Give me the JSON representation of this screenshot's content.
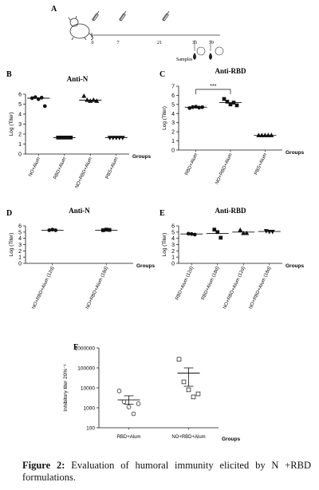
{
  "figure": {
    "caption_label": "Figure 2:",
    "caption_text": "Evaluation of humoral immunity elicited by N +RBD formulations."
  },
  "timeline": {
    "panel_letter": "A",
    "ticks": [
      "0",
      "7",
      "21",
      "33",
      "39"
    ],
    "samples_label": "Samples"
  },
  "chart_data": [
    {
      "id": "B",
      "type": "scatter",
      "title": "Anti-N",
      "xlabel": "Groups",
      "ylabel": "Log (Titer)",
      "ylim": [
        0,
        6
      ],
      "yticks": [
        0,
        1,
        2,
        3,
        4,
        5,
        6
      ],
      "categories": [
        "NO+Alum",
        "RBD+Alum",
        "NO+RBD+Alum",
        "PBS+Alum"
      ],
      "markers": [
        "circle",
        "square",
        "triangle",
        "down-triangle"
      ],
      "means": [
        5.6,
        1.65,
        5.4,
        1.65
      ],
      "points": [
        [
          5.6,
          5.7,
          5.5,
          5.65,
          4.8
        ],
        [
          1.65,
          1.65,
          1.65,
          1.65,
          1.65
        ],
        [
          5.8,
          5.4,
          5.3,
          5.4,
          5.3
        ],
        [
          1.65,
          1.65,
          1.65,
          1.65,
          1.65
        ]
      ]
    },
    {
      "id": "C",
      "type": "scatter",
      "title": "Anti-RBD",
      "xlabel": "Groups",
      "ylabel": "Log (Titer)",
      "ylim": [
        0,
        7
      ],
      "yticks": [
        0,
        1,
        2,
        3,
        4,
        5,
        6,
        7
      ],
      "categories": [
        "RBD+Alum",
        "NO+RBD+Alum",
        "PBS+Alum"
      ],
      "markers": [
        "circle",
        "square",
        "triangle"
      ],
      "means": [
        4.7,
        5.2,
        1.6
      ],
      "points": [
        [
          4.6,
          4.7,
          4.75,
          4.65,
          4.7
        ],
        [
          5.6,
          5.3,
          5.0,
          5.2,
          4.9
        ],
        [
          1.6,
          1.6,
          1.6,
          1.6,
          1.6
        ]
      ],
      "significance": {
        "from": 0,
        "to": 1,
        "label": "***"
      }
    },
    {
      "id": "D",
      "type": "scatter",
      "title": "Anti-N",
      "xlabel": "Groups",
      "ylabel": "Log (Titer)",
      "ylim": [
        0,
        6
      ],
      "yticks": [
        0,
        1,
        2,
        3,
        4,
        5,
        6
      ],
      "categories": [
        "NO+RBD+Alum (12d)",
        "NO+RBD+Alum (18d)"
      ],
      "markers": [
        "circle",
        "square"
      ],
      "means": [
        5.3,
        5.3
      ],
      "points": [
        [
          5.3,
          5.4,
          5.3
        ],
        [
          5.3,
          5.4,
          5.35
        ]
      ]
    },
    {
      "id": "E",
      "type": "scatter",
      "title": "Anti-RBD",
      "xlabel": "Groups",
      "ylabel": "Log (Titer)",
      "ylim": [
        0,
        6
      ],
      "yticks": [
        0,
        1,
        2,
        3,
        4,
        5,
        6
      ],
      "categories": [
        "RBD+Alum (12d)",
        "RBD+Alum (18d)",
        "NO+RBD+Alum (12d)",
        "NO+RBD+Alum (18d)"
      ],
      "markers": [
        "circle",
        "square",
        "triangle",
        "down-triangle"
      ],
      "means": [
        4.7,
        4.8,
        5.0,
        5.1
      ],
      "points": [
        [
          4.75,
          4.7,
          4.6
        ],
        [
          5.4,
          5.0,
          4.1
        ],
        [
          5.3,
          4.8,
          4.8
        ],
        [
          5.2,
          5.1,
          5.1
        ]
      ]
    },
    {
      "id": "F",
      "type": "scatter",
      "title": "",
      "xlabel": "Groups",
      "ylabel": "Inhibitory titer 20%⁻¹",
      "yscale": "log",
      "ylim": [
        100,
        1000000
      ],
      "yticks": [
        100,
        1000,
        10000,
        100000,
        1000000
      ],
      "ytick_labels": [
        "100",
        "1000",
        "10000",
        "100000",
        "1000000"
      ],
      "categories": [
        "RBD+Alum",
        "NO+RBD+Alum"
      ],
      "markers": [
        "open-circle",
        "open-square"
      ],
      "means": [
        2500,
        55000
      ],
      "sem_low": [
        1500,
        12000
      ],
      "sem_high": [
        4000,
        100000
      ],
      "points": [
        [
          7000,
          2000,
          1100,
          500,
          1600
        ],
        [
          270000,
          20000,
          8000,
          3500,
          5000
        ]
      ]
    }
  ]
}
